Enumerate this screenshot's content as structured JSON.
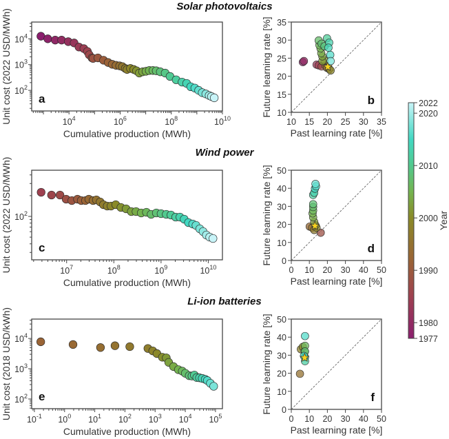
{
  "colorbar": {
    "label": "Year",
    "range": [
      1977,
      2022
    ],
    "ticks": [
      1977,
      1980,
      1990,
      2000,
      2010,
      2020,
      2022
    ],
    "stops": [
      [
        1977,
        "#8b1f6e"
      ],
      [
        1985,
        "#9e4150"
      ],
      [
        1992,
        "#9a6436"
      ],
      [
        2000,
        "#8a8a28"
      ],
      [
        2005,
        "#74b450"
      ],
      [
        2010,
        "#52c98e"
      ],
      [
        2015,
        "#42d8c2"
      ],
      [
        2022,
        "#c8f4f8"
      ]
    ]
  },
  "chart_data": [
    {
      "panel": "a",
      "section": "Solar photovoltaics",
      "type": "scatter",
      "xscale": "log",
      "yscale": "log",
      "xlabel": "Cumulative production (MWh)",
      "ylabel": "Unit cost (2022 USD/MWh)",
      "xlim_log10": [
        2.54,
        10.0
      ],
      "ylim_log10": [
        1.2,
        4.65
      ],
      "xticks_log10": [
        4,
        6,
        8,
        10
      ],
      "yticks_log10": [
        2,
        3,
        4
      ],
      "year_range": [
        1977,
        2022
      ],
      "x_log10": [
        2.9,
        3.17,
        3.46,
        3.71,
        3.97,
        4.2,
        4.39,
        4.58,
        4.72,
        4.79,
        4.9,
        4.94,
        5.13,
        5.35,
        5.53,
        5.69,
        5.84,
        5.98,
        6.09,
        6.2,
        6.27,
        6.4,
        6.53,
        6.64,
        6.75,
        6.88,
        7.01,
        7.14,
        7.28,
        7.41,
        7.57,
        7.76,
        7.95,
        8.19,
        8.42,
        8.6,
        8.76,
        8.92,
        9.07,
        9.21,
        9.35,
        9.48,
        9.57,
        9.68
      ],
      "y_log10": [
        4.1,
        4.0,
        3.95,
        3.95,
        3.89,
        3.84,
        3.68,
        3.62,
        3.51,
        3.38,
        3.26,
        3.24,
        3.26,
        3.17,
        3.08,
        3.01,
        2.97,
        2.95,
        2.92,
        2.85,
        2.81,
        2.85,
        2.81,
        2.76,
        2.67,
        2.72,
        2.74,
        2.77,
        2.77,
        2.76,
        2.72,
        2.67,
        2.54,
        2.41,
        2.32,
        2.27,
        2.14,
        2.09,
        2.0,
        1.91,
        1.86,
        1.8,
        1.76,
        1.71
      ]
    },
    {
      "panel": "b",
      "type": "scatter",
      "xlabel": "Past learning rate [%]",
      "ylabel": "Future learning rate [%]",
      "xlim": [
        10,
        35
      ],
      "ylim": [
        10,
        35
      ],
      "ticks": [
        10,
        15,
        20,
        25,
        30,
        35
      ],
      "diagonal": true,
      "points": [
        [
          13.2,
          23.9,
          1978
        ],
        [
          13.5,
          24.2,
          1980
        ],
        [
          17.0,
          23.2,
          1983
        ],
        [
          17.6,
          23.0,
          1985
        ],
        [
          18.4,
          22.7,
          1987
        ],
        [
          19.5,
          22.9,
          1993
        ],
        [
          19.9,
          22.3,
          1995
        ],
        [
          20.5,
          22.0,
          1997
        ],
        [
          20.9,
          21.6,
          1999
        ],
        [
          19.2,
          24.4,
          2001
        ],
        [
          18.6,
          24.2,
          2002
        ],
        [
          18.6,
          25.5,
          2003
        ],
        [
          18.3,
          26.4,
          2004
        ],
        [
          18.1,
          27.7,
          2005
        ],
        [
          17.8,
          28.6,
          2006
        ],
        [
          17.6,
          29.9,
          2007
        ],
        [
          18.4,
          29.0,
          2008
        ],
        [
          19.2,
          28.3,
          2009
        ],
        [
          19.9,
          30.5,
          2011
        ],
        [
          20.5,
          29.3,
          2013
        ],
        [
          20.3,
          27.9,
          2014
        ],
        [
          20.8,
          25.9,
          2016
        ],
        [
          20.9,
          24.2,
          2018
        ]
      ],
      "star": [
        20.1,
        22.6
      ]
    },
    {
      "panel": "c",
      "section": "Wind power",
      "type": "scatter",
      "xscale": "log",
      "yscale": "log",
      "xlabel": "Cumulative production (MWh)",
      "ylabel": "Unit cost (2022 USD/MWh)",
      "xlim_log10": [
        6.26,
        10.3
      ],
      "ylim_log10": [
        1.37,
        2.67
      ],
      "xticks_log10": [
        7,
        8,
        9,
        10
      ],
      "yticks_log10": [
        2
      ],
      "year_range": [
        1985,
        2022
      ],
      "x_log10": [
        6.46,
        6.68,
        6.86,
        6.99,
        7.11,
        7.23,
        7.31,
        7.4,
        7.47,
        7.56,
        7.63,
        7.71,
        7.78,
        7.86,
        7.94,
        8.04,
        8.15,
        8.26,
        8.37,
        8.47,
        8.58,
        8.69,
        8.79,
        8.9,
        9.0,
        9.11,
        9.21,
        9.31,
        9.4,
        9.49,
        9.58,
        9.67,
        9.74,
        9.82,
        9.89,
        9.96,
        10.03,
        10.1
      ],
      "y_log10": [
        2.35,
        2.31,
        2.31,
        2.25,
        2.23,
        2.25,
        2.23,
        2.23,
        2.25,
        2.23,
        2.24,
        2.21,
        2.17,
        2.15,
        2.15,
        2.17,
        2.13,
        2.11,
        2.07,
        2.07,
        2.05,
        2.06,
        2.03,
        2.05,
        2.04,
        2.03,
        2.02,
        1.99,
        1.99,
        1.96,
        1.91,
        1.89,
        1.87,
        1.82,
        1.78,
        1.73,
        1.7,
        1.68
      ]
    },
    {
      "panel": "d",
      "type": "scatter",
      "xlabel": "Past learning rate [%]",
      "ylabel": "Future learning rate [%]",
      "xlim": [
        0,
        50
      ],
      "ylim": [
        0,
        50
      ],
      "ticks": [
        0,
        10,
        20,
        30,
        40,
        50
      ],
      "diagonal": true,
      "points": [
        [
          16.3,
          15.4,
          1988
        ],
        [
          10.2,
          18.8,
          1993
        ],
        [
          11.5,
          18.2,
          1995
        ],
        [
          12.7,
          16.9,
          1997
        ],
        [
          14.0,
          18.2,
          1999
        ],
        [
          13.4,
          19.5,
          2000
        ],
        [
          12.7,
          21.4,
          2002
        ],
        [
          12.1,
          23.9,
          2004
        ],
        [
          11.8,
          26.1,
          2005
        ],
        [
          12.1,
          27.7,
          2006
        ],
        [
          12.1,
          29.6,
          2007
        ],
        [
          12.1,
          31.2,
          2008
        ],
        [
          12.1,
          36.3,
          2012
        ],
        [
          12.7,
          37.5,
          2013
        ],
        [
          13.1,
          39.8,
          2015
        ],
        [
          13.7,
          41.1,
          2016
        ],
        [
          13.4,
          42.4,
          2017
        ]
      ],
      "star": [
        13.1,
        19.2
      ]
    },
    {
      "panel": "e",
      "section": "Li-ion batteries",
      "type": "scatter",
      "xscale": "log",
      "yscale": "log",
      "xlabel": "Cumulative production (MWh)",
      "ylabel": "Unit cost (2018 USD/kWh)",
      "xlim_log10": [
        -1.09,
        5.23
      ],
      "ylim_log10": [
        1.68,
        4.64
      ],
      "xticks_log10": [
        -1,
        0,
        1,
        2,
        3,
        4,
        5
      ],
      "yticks_log10": [
        2,
        3,
        4
      ],
      "year_range": [
        1992,
        2018
      ],
      "x_log10": [
        -0.79,
        0.28,
        1.19,
        1.67,
        2.16,
        2.76,
        2.92,
        3.06,
        3.24,
        3.37,
        3.45,
        3.61,
        3.77,
        3.9,
        4.0,
        4.13,
        4.22,
        4.3,
        4.38,
        4.47,
        4.56,
        4.66,
        4.73,
        4.83,
        4.94
      ],
      "y_log10": [
        3.89,
        3.8,
        3.7,
        3.76,
        3.73,
        3.67,
        3.59,
        3.5,
        3.38,
        3.36,
        3.21,
        3.07,
        2.97,
        2.92,
        2.85,
        2.77,
        2.76,
        2.79,
        2.71,
        2.7,
        2.68,
        2.65,
        2.61,
        2.52,
        2.42
      ]
    },
    {
      "panel": "f",
      "type": "scatter",
      "xlabel": "Past learning rate [%]",
      "ylabel": "Future learning rate [%]",
      "xlim": [
        0,
        50
      ],
      "ylim": [
        0,
        50
      ],
      "ticks": [
        0,
        10,
        20,
        30,
        40,
        50
      ],
      "diagonal": true,
      "points": [
        [
          4.8,
          19.7,
          1995
        ],
        [
          5.3,
          33.3,
          1998
        ],
        [
          6.4,
          34.6,
          2000
        ],
        [
          7.4,
          32.1,
          2003
        ],
        [
          7.6,
          35.2,
          2006
        ],
        [
          7.6,
          32.1,
          2008
        ],
        [
          7.6,
          28.9,
          2010
        ],
        [
          7.6,
          26.7,
          2012
        ],
        [
          7.0,
          29.6,
          2014
        ],
        [
          7.6,
          40.6,
          2016
        ]
      ],
      "star": [
        7.4,
        28.6
      ]
    }
  ]
}
